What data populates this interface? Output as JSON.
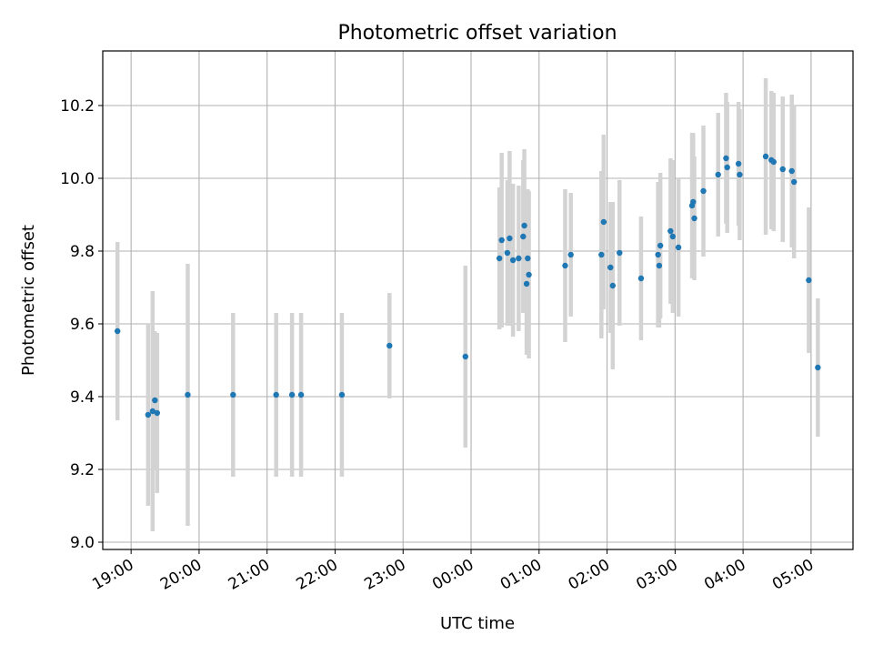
{
  "chart_data": {
    "type": "scatter",
    "title": "Photometric offset variation",
    "xlabel": "UTC time",
    "ylabel": "Photometric offset",
    "x_format": "HH:MM",
    "x_base_date": "2000-01-01",
    "xlim": [
      "2000-01-01T18:35",
      "2000-01-02T05:37"
    ],
    "ylim": [
      8.98,
      10.35
    ],
    "x_ticks": [
      "19:00",
      "20:00",
      "21:00",
      "22:00",
      "23:00",
      "00:00",
      "01:00",
      "02:00",
      "03:00",
      "04:00",
      "05:00"
    ],
    "y_ticks": [
      "9.0",
      "9.2",
      "9.4",
      "9.6",
      "9.8",
      "10.0",
      "10.2"
    ],
    "grid": true,
    "error_bars": true,
    "colors": {
      "points": "#1f77b4",
      "error_bars": "#d3d3d3",
      "grid": "#b0b0b0"
    },
    "series": [
      {
        "x": [
          "18:48",
          "19:15",
          "19:19",
          "19:21",
          "19:23",
          "19:50",
          "20:30",
          "21:08",
          "21:22",
          "21:30",
          "22:06",
          "22:48",
          "23:55",
          "00:25",
          "00:27",
          "00:32",
          "00:34",
          "00:37",
          "00:42",
          "00:46",
          "00:47",
          "00:49",
          "00:50",
          "00:51",
          "01:23",
          "01:28",
          "01:55",
          "01:57",
          "02:03",
          "02:05",
          "02:11",
          "02:30",
          "02:45",
          "02:46",
          "02:47",
          "02:56",
          "02:58",
          "03:03",
          "03:15",
          "03:16",
          "03:17",
          "03:25",
          "03:38",
          "03:45",
          "03:46",
          "03:56",
          "03:57",
          "04:20",
          "04:25",
          "04:27",
          "04:35",
          "04:43",
          "04:45",
          "04:58",
          "05:06"
        ],
        "y": [
          9.58,
          9.35,
          9.36,
          9.39,
          9.355,
          9.405,
          9.405,
          9.405,
          9.405,
          9.405,
          9.405,
          9.54,
          9.51,
          9.78,
          9.83,
          9.795,
          9.835,
          9.775,
          9.78,
          9.84,
          9.87,
          9.71,
          9.78,
          9.735,
          9.76,
          9.79,
          9.79,
          9.88,
          9.755,
          9.705,
          9.795,
          9.725,
          9.79,
          9.76,
          9.815,
          9.855,
          9.84,
          9.81,
          9.925,
          9.935,
          9.89,
          9.965,
          10.01,
          10.055,
          10.03,
          10.04,
          10.01,
          10.06,
          10.05,
          10.045,
          10.025,
          10.02,
          9.99,
          9.72,
          9.48
        ],
        "yerr": [
          0.245,
          0.25,
          0.33,
          0.19,
          0.22,
          0.36,
          0.225,
          0.225,
          0.225,
          0.225,
          0.225,
          0.145,
          0.25,
          0.195,
          0.24,
          0.2,
          0.24,
          0.21,
          0.2,
          0.21,
          0.21,
          0.195,
          0.19,
          0.23,
          0.21,
          0.17,
          0.23,
          0.24,
          0.18,
          0.23,
          0.2,
          0.17,
          0.2,
          0.17,
          0.2,
          0.2,
          0.21,
          0.19,
          0.2,
          0.19,
          0.17,
          0.18,
          0.17,
          0.18,
          0.18,
          0.17,
          0.18,
          0.215,
          0.19,
          0.19,
          0.2,
          0.21,
          0.21,
          0.2,
          0.19
        ]
      }
    ]
  }
}
